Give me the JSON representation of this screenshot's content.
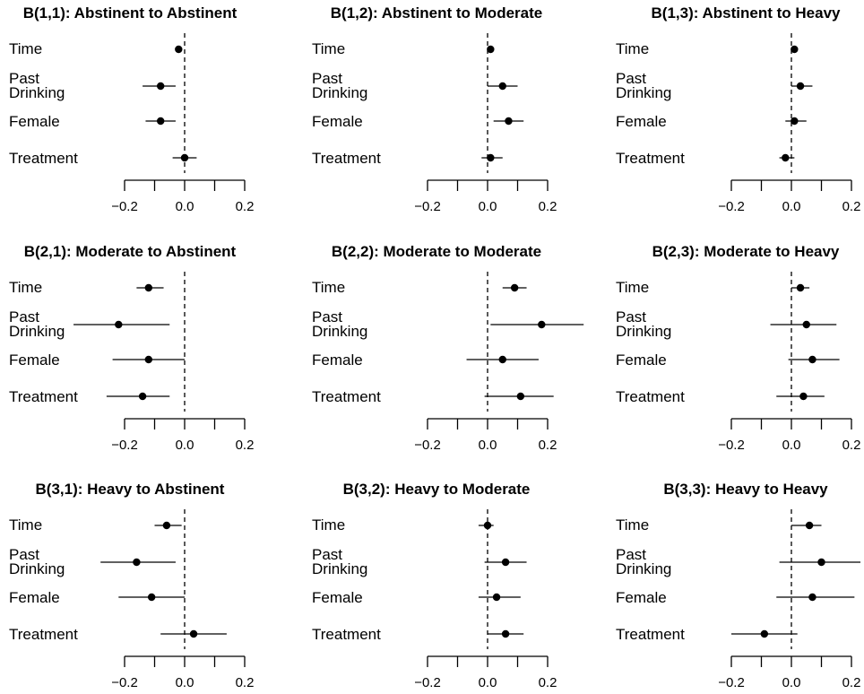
{
  "chart_data": [
    {
      "type": "forest",
      "title": "B(1,1): Abstinent to Abstinent",
      "row_labels": [
        "Time",
        "Past Drinking",
        "Female",
        "Treatment"
      ],
      "estimates": [
        -0.02,
        -0.08,
        -0.08,
        0.0
      ],
      "ci_low": [
        -0.025,
        -0.14,
        -0.13,
        -0.04
      ],
      "ci_high": [
        -0.01,
        -0.03,
        -0.03,
        0.04
      ],
      "xlim": [
        -0.2,
        0.2
      ],
      "x_ticks": [
        -0.2,
        -0.1,
        0.0,
        0.1,
        0.2
      ],
      "x_tick_labels": [
        "-0.2",
        "",
        "0.0",
        "",
        "0.2"
      ],
      "reference_line": 0.0
    },
    {
      "type": "forest",
      "title": "B(1,2): Abstinent to Moderate",
      "row_labels": [
        "Time",
        "Past Drinking",
        "Female",
        "Treatment"
      ],
      "estimates": [
        0.01,
        0.05,
        0.07,
        0.01
      ],
      "ci_low": [
        0.005,
        0.0,
        0.02,
        -0.02
      ],
      "ci_high": [
        0.015,
        0.1,
        0.12,
        0.05
      ],
      "xlim": [
        -0.2,
        0.2
      ],
      "x_ticks": [
        -0.2,
        -0.1,
        0.0,
        0.1,
        0.2
      ],
      "x_tick_labels": [
        "-0.2",
        "",
        "0.0",
        "",
        "0.2"
      ],
      "reference_line": 0.0
    },
    {
      "type": "forest",
      "title": "B(1,3): Abstinent to Heavy",
      "row_labels": [
        "Time",
        "Past Drinking",
        "Female",
        "Treatment"
      ],
      "estimates": [
        0.01,
        0.03,
        0.01,
        -0.02
      ],
      "ci_low": [
        0.005,
        0.0,
        -0.02,
        -0.04
      ],
      "ci_high": [
        0.015,
        0.07,
        0.05,
        0.01
      ],
      "xlim": [
        -0.2,
        0.2
      ],
      "x_ticks": [
        -0.2,
        -0.1,
        0.0,
        0.1,
        0.2
      ],
      "x_tick_labels": [
        "-0.2",
        "",
        "0.0",
        "",
        "0.2"
      ],
      "reference_line": 0.0
    },
    {
      "type": "forest",
      "title": "B(2,1): Moderate to Abstinent",
      "row_labels": [
        "Time",
        "Past Drinking",
        "Female",
        "Treatment"
      ],
      "estimates": [
        -0.12,
        -0.22,
        -0.12,
        -0.14
      ],
      "ci_low": [
        -0.16,
        -0.37,
        -0.24,
        -0.26
      ],
      "ci_high": [
        -0.07,
        -0.05,
        0.0,
        -0.05
      ],
      "xlim": [
        -0.2,
        0.2
      ],
      "x_ticks": [
        -0.2,
        -0.1,
        0.0,
        0.1,
        0.2
      ],
      "x_tick_labels": [
        "-0.2",
        "",
        "0.0",
        "",
        "0.2"
      ],
      "reference_line": 0.0
    },
    {
      "type": "forest",
      "title": "B(2,2): Moderate to Moderate",
      "row_labels": [
        "Time",
        "Past Drinking",
        "Female",
        "Treatment"
      ],
      "estimates": [
        0.09,
        0.18,
        0.05,
        0.11
      ],
      "ci_low": [
        0.05,
        0.01,
        -0.07,
        -0.01
      ],
      "ci_high": [
        0.13,
        0.32,
        0.17,
        0.22
      ],
      "xlim": [
        -0.2,
        0.2
      ],
      "x_ticks": [
        -0.2,
        -0.1,
        0.0,
        0.1,
        0.2
      ],
      "x_tick_labels": [
        "-0.2",
        "",
        "0.0",
        "",
        "0.2"
      ],
      "reference_line": 0.0
    },
    {
      "type": "forest",
      "title": "B(2,3): Moderate to Heavy",
      "row_labels": [
        "Time",
        "Past Drinking",
        "Female",
        "Treatment"
      ],
      "estimates": [
        0.03,
        0.05,
        0.07,
        0.04
      ],
      "ci_low": [
        0.0,
        -0.07,
        -0.01,
        -0.05
      ],
      "ci_high": [
        0.06,
        0.15,
        0.16,
        0.11
      ],
      "xlim": [
        -0.2,
        0.2
      ],
      "x_ticks": [
        -0.2,
        -0.1,
        0.0,
        0.1,
        0.2
      ],
      "x_tick_labels": [
        "-0.2",
        "",
        "0.0",
        "",
        "0.2"
      ],
      "reference_line": 0.0
    },
    {
      "type": "forest",
      "title": "B(3,1): Heavy to Abstinent",
      "row_labels": [
        "Time",
        "Past Drinking",
        "Female",
        "Treatment"
      ],
      "estimates": [
        -0.06,
        -0.16,
        -0.11,
        0.03
      ],
      "ci_low": [
        -0.1,
        -0.28,
        -0.22,
        -0.08
      ],
      "ci_high": [
        -0.01,
        -0.03,
        0.0,
        0.14
      ],
      "xlim": [
        -0.2,
        0.2
      ],
      "x_ticks": [
        -0.2,
        -0.1,
        0.0,
        0.1,
        0.2
      ],
      "x_tick_labels": [
        "-0.2",
        "",
        "0.0",
        "",
        "0.2"
      ],
      "reference_line": 0.0
    },
    {
      "type": "forest",
      "title": "B(3,2): Heavy to Moderate",
      "row_labels": [
        "Time",
        "Past Drinking",
        "Female",
        "Treatment"
      ],
      "estimates": [
        0.0,
        0.06,
        0.03,
        0.06
      ],
      "ci_low": [
        -0.03,
        -0.01,
        -0.03,
        0.0
      ],
      "ci_high": [
        0.02,
        0.13,
        0.11,
        0.12
      ],
      "xlim": [
        -0.2,
        0.2
      ],
      "x_ticks": [
        -0.2,
        -0.1,
        0.0,
        0.1,
        0.2
      ],
      "x_tick_labels": [
        "-0.2",
        "",
        "0.0",
        "",
        "0.2"
      ],
      "reference_line": 0.0
    },
    {
      "type": "forest",
      "title": "B(3,3): Heavy to Heavy",
      "row_labels": [
        "Time",
        "Past Drinking",
        "Female",
        "Treatment"
      ],
      "estimates": [
        0.06,
        0.1,
        0.07,
        -0.09
      ],
      "ci_low": [
        0.0,
        -0.04,
        -0.05,
        -0.2
      ],
      "ci_high": [
        0.1,
        0.23,
        0.21,
        0.02
      ],
      "xlim": [
        -0.2,
        0.2
      ],
      "x_ticks": [
        -0.2,
        -0.1,
        0.0,
        0.1,
        0.2
      ],
      "x_tick_labels": [
        "-0.2",
        "",
        "0.0",
        "",
        "0.2"
      ],
      "reference_line": 0.0
    }
  ]
}
